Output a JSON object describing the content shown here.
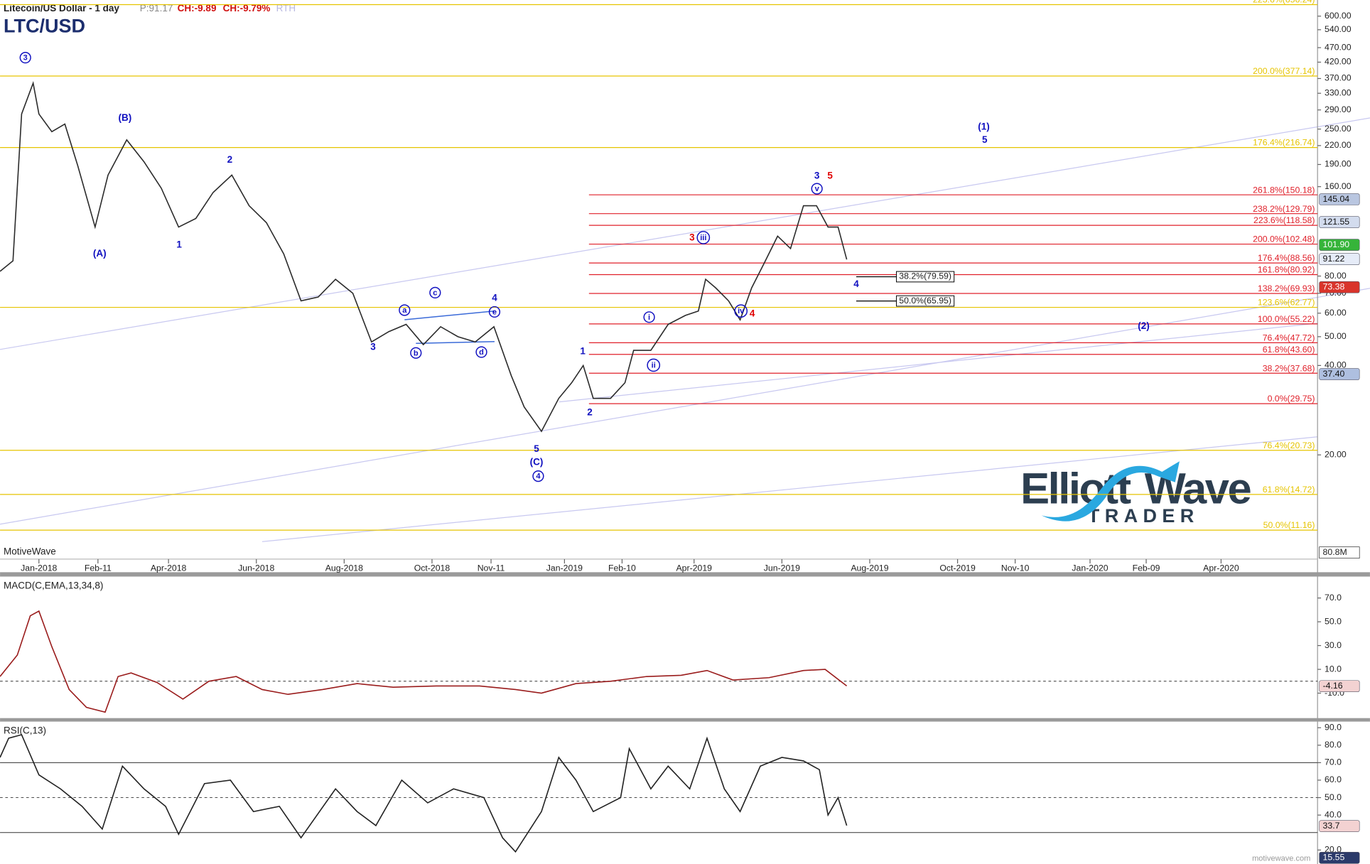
{
  "header": {
    "title": "Litecoin/US Dollar - 1 day",
    "price": "P:91.17",
    "change": "CH:-9.89",
    "change_pct": "CH:-9.79%",
    "session": "RTH",
    "symbol": "LTC/USD"
  },
  "watermark": {
    "left": "MotiveWave",
    "right": "motivewave.com"
  },
  "logo": {
    "word1": "Elliott",
    "word2": "Wave",
    "word3": "TRADER"
  },
  "chart_data": [
    {
      "type": "line",
      "log_scale": true,
      "color": "#2b2b2b",
      "x": [
        -27,
        -18,
        -12,
        -4,
        0,
        9,
        18,
        27,
        39,
        48,
        61,
        73,
        85,
        97,
        109,
        121,
        134,
        146,
        158,
        170,
        182,
        194,
        206,
        218,
        231,
        243,
        255,
        267,
        279,
        291,
        303,
        316,
        328,
        337,
        349,
        361,
        370,
        378,
        385,
        397,
        407,
        413,
        425,
        437,
        449,
        458,
        463,
        470,
        479,
        487,
        495,
        504,
        513,
        522,
        531,
        540,
        548,
        555,
        561
      ],
      "values": [
        83,
        90,
        281,
        357,
        281,
        245,
        260,
        188,
        117,
        175,
        230,
        194,
        158,
        117,
        125,
        153,
        175,
        138,
        121,
        95,
        66,
        68,
        78,
        70,
        48,
        52,
        55,
        47,
        54,
        50,
        48,
        54,
        37,
        29,
        24,
        31,
        35,
        40,
        31,
        31,
        35,
        45,
        45,
        55,
        59,
        61,
        78,
        73,
        66,
        57,
        73,
        89,
        109,
        99,
        138,
        138,
        117,
        117,
        91
      ],
      "xlim": [
        -27,
        888
      ],
      "xticks": [
        {
          "value": 0,
          "label": "Jan-2018"
        },
        {
          "value": 41,
          "label": "Feb-11"
        },
        {
          "value": 90,
          "label": "Apr-2018"
        },
        {
          "value": 151,
          "label": "Jun-2018"
        },
        {
          "value": 212,
          "label": "Aug-2018"
        },
        {
          "value": 273,
          "label": "Oct-2018"
        },
        {
          "value": 314,
          "label": "Nov-11"
        },
        {
          "value": 365,
          "label": "Jan-2019"
        },
        {
          "value": 405,
          "label": "Feb-10"
        },
        {
          "value": 455,
          "label": "Apr-2019"
        },
        {
          "value": 516,
          "label": "Jun-2019"
        },
        {
          "value": 577,
          "label": "Aug-2019"
        },
        {
          "value": 638,
          "label": "Oct-2019"
        },
        {
          "value": 678,
          "label": "Nov-10"
        },
        {
          "value": 730,
          "label": "Jan-2020"
        },
        {
          "value": 769,
          "label": "Feb-09"
        },
        {
          "value": 821,
          "label": "Apr-2020"
        }
      ],
      "ylim": [
        8,
        680
      ],
      "yticks": [
        {
          "value": 600,
          "label": "600.00"
        },
        {
          "value": 540,
          "label": "540.00"
        },
        {
          "value": 470,
          "label": "470.00"
        },
        {
          "value": 420,
          "label": "420.00"
        },
        {
          "value": 370,
          "label": "370.00"
        },
        {
          "value": 330,
          "label": "330.00"
        },
        {
          "value": 290,
          "label": "290.00"
        },
        {
          "value": 250,
          "label": "250.00"
        },
        {
          "value": 220,
          "label": "220.00"
        },
        {
          "value": 190,
          "label": "190.00"
        },
        {
          "value": 160,
          "label": "160.00"
        },
        {
          "value": 80,
          "label": "80.00"
        },
        {
          "value": 70,
          "label": "70.00"
        },
        {
          "value": 60,
          "label": "60.00"
        },
        {
          "value": 50,
          "label": "50.00"
        },
        {
          "value": 40,
          "label": "40.00"
        },
        {
          "value": 20,
          "label": "20.00"
        }
      ],
      "fib_sets": [
        {
          "color": "#e6c400",
          "levels": [
            {
              "value": 656.24,
              "label": "223.6%(656.24)"
            },
            {
              "value": 377.14,
              "label": "200.0%(377.14)"
            },
            {
              "value": 216.74,
              "label": "176.4%(216.74)"
            },
            {
              "value": 62.77,
              "label": "123.6%(62.77)"
            },
            {
              "value": 20.73,
              "label": "76.4%(20.73)"
            },
            {
              "value": 14.72,
              "label": "61.8%(14.72)"
            },
            {
              "value": 11.16,
              "label": "50.0%(11.16)"
            }
          ]
        },
        {
          "color": "#e0202a",
          "levels": [
            {
              "value": 150.18,
              "label": "261.8%(150.18)"
            },
            {
              "value": 129.79,
              "label": "238.2%(129.79)"
            },
            {
              "value": 118.58,
              "label": "223.6%(118.58)"
            },
            {
              "value": 102.48,
              "label": "200.0%(102.48)"
            },
            {
              "value": 88.56,
              "label": "176.4%(88.56)"
            },
            {
              "value": 80.92,
              "label": "161.8%(80.92)"
            },
            {
              "value": 69.93,
              "label": "138.2%(69.93)"
            },
            {
              "value": 55.22,
              "label": "100.0%(55.22)"
            },
            {
              "value": 47.72,
              "label": "76.4%(47.72)"
            },
            {
              "value": 43.6,
              "label": "61.8%(43.60)"
            },
            {
              "value": 37.68,
              "label": "38.2%(37.68)"
            },
            {
              "value": 29.75,
              "label": "0.0%(29.75)"
            }
          ]
        }
      ],
      "projections": [
        {
          "value": 79.59,
          "label": "38.2%(79.59)"
        },
        {
          "value": 65.95,
          "label": "50.0%(65.95)"
        }
      ],
      "price_badges": [
        {
          "value": 145.04,
          "label": "145.04",
          "color": "#b9c6e0"
        },
        {
          "value": 121.55,
          "label": "121.55",
          "color": "#d3dcee"
        },
        {
          "value": 101.9,
          "label": "101.90",
          "color": "#36b43a"
        },
        {
          "value": 91.22,
          "label": "91.22",
          "color": "#e6ecf8"
        },
        {
          "value": 73.38,
          "label": "73.38",
          "color": "#d9342b"
        },
        {
          "value": 37.4,
          "label": "37.40",
          "color": "#aebfe0"
        }
      ],
      "volume_badge": "80.8M",
      "wave_labels": [
        {
          "text": "3",
          "circled": true,
          "color": "#1010c0"
        },
        {
          "text": "(B)",
          "circled": false,
          "color": "#1010c0"
        },
        {
          "text": "(A)",
          "circled": false,
          "color": "#1010c0"
        },
        {
          "text": "2",
          "circled": false,
          "color": "#1010c0"
        },
        {
          "text": "1",
          "circled": false,
          "color": "#1010c0"
        },
        {
          "text": "a",
          "circled": true,
          "color": "#1010c0"
        },
        {
          "text": "c",
          "circled": true,
          "color": "#1010c0"
        },
        {
          "text": "4",
          "circled": false,
          "color": "#1010c0"
        },
        {
          "text": "e",
          "circled": true,
          "color": "#1010c0"
        },
        {
          "text": "b",
          "circled": true,
          "color": "#1010c0"
        },
        {
          "text": "d",
          "circled": true,
          "color": "#1010c0"
        },
        {
          "text": "3",
          "circled": false,
          "color": "#1010c0"
        },
        {
          "text": "5",
          "circled": false,
          "color": "#1010c0"
        },
        {
          "text": "(C)",
          "circled": false,
          "color": "#1010c0"
        },
        {
          "text": "4",
          "circled": true,
          "color": "#1010c0"
        },
        {
          "text": "1",
          "circled": false,
          "color": "#1010c0"
        },
        {
          "text": "2",
          "circled": false,
          "color": "#1010c0"
        },
        {
          "text": "i",
          "circled": true,
          "color": "#1010c0"
        },
        {
          "text": "ii",
          "circled": true,
          "color": "#1010c0"
        },
        {
          "text": "3",
          "circled": false,
          "color": "#e00000"
        },
        {
          "text": "iii",
          "circled": true,
          "color": "#1010c0"
        },
        {
          "text": "iv",
          "circled": true,
          "color": "#1010c0"
        },
        {
          "text": "4",
          "circled": false,
          "color": "#e00000"
        },
        {
          "text": "3",
          "circled": false,
          "color": "#1010c0"
        },
        {
          "text": "5",
          "circled": false,
          "color": "#e00000"
        },
        {
          "text": "v",
          "circled": true,
          "color": "#1010c0"
        },
        {
          "text": "4",
          "circled": false,
          "color": "#1010c0"
        },
        {
          "text": "(1)",
          "circled": false,
          "color": "#1010c0"
        },
        {
          "text": "5",
          "circled": false,
          "color": "#1010c0"
        },
        {
          "text": "(2)",
          "circled": false,
          "color": "#1010c0"
        }
      ]
    },
    {
      "type": "line",
      "title": "MACD(C,EMA,13,34,8)",
      "color": "#9a1c1c",
      "x": [
        -27,
        -15,
        -6,
        0,
        9,
        21,
        33,
        46,
        55,
        64,
        82,
        100,
        118,
        137,
        155,
        173,
        197,
        221,
        246,
        276,
        306,
        331,
        349,
        373,
        397,
        422,
        446,
        464,
        482,
        507,
        531,
        546,
        561
      ],
      "values": [
        4,
        22,
        55,
        59,
        29,
        -7,
        -22,
        -26,
        4,
        7,
        -1,
        -15,
        0,
        4,
        -7,
        -11,
        -7,
        -2,
        -5,
        -4,
        -4,
        -7,
        -10,
        -2,
        0,
        4,
        5,
        9,
        1,
        3,
        9,
        10,
        -4
      ],
      "xlim": [
        -27,
        888
      ],
      "ylim": [
        -31,
        88
      ],
      "yticks": [
        {
          "value": 70,
          "label": "70.0"
        },
        {
          "value": 50,
          "label": "50.0"
        },
        {
          "value": 30,
          "label": "30.0"
        },
        {
          "value": 10,
          "label": "10.0"
        },
        {
          "value": -10,
          "label": "-10.0"
        }
      ],
      "badges": [
        {
          "value": -4.16,
          "label": "-4.16",
          "color": "#f3d2d2"
        }
      ]
    },
    {
      "type": "line",
      "title": "RSI(C,13)",
      "color": "#222222",
      "x": [
        -27,
        -21,
        -12,
        0,
        15,
        30,
        44,
        58,
        73,
        88,
        97,
        115,
        133,
        149,
        167,
        182,
        206,
        221,
        234,
        252,
        270,
        288,
        309,
        322,
        331,
        349,
        361,
        373,
        385,
        404,
        410,
        425,
        437,
        452,
        464,
        476,
        487,
        501,
        516,
        531,
        542,
        548,
        555,
        561
      ],
      "values": [
        73,
        84,
        86,
        63,
        55,
        45,
        32,
        68,
        55,
        45,
        29,
        58,
        60,
        42,
        45,
        27,
        55,
        42,
        34,
        60,
        47,
        55,
        50,
        27,
        19,
        42,
        73,
        60,
        42,
        50,
        78,
        55,
        68,
        55,
        84,
        55,
        42,
        68,
        73,
        71,
        66,
        40,
        50,
        34
      ],
      "xlim": [
        -27,
        888
      ],
      "ylim": [
        12,
        93.5
      ],
      "yticks": [
        {
          "value": 90,
          "label": "90.0"
        },
        {
          "value": 80,
          "label": "80.0"
        },
        {
          "value": 70,
          "label": "70.0"
        },
        {
          "value": 60,
          "label": "60.0"
        },
        {
          "value": 50,
          "label": "50.0"
        },
        {
          "value": 40,
          "label": "40.0"
        },
        {
          "value": 20,
          "label": "20.0"
        }
      ],
      "levels": [
        70,
        50,
        30
      ],
      "badges": [
        {
          "value": 33.7,
          "label": "33.7",
          "color": "#f3d2d2"
        },
        {
          "value": 15.55,
          "label": "15.55",
          "color": "#2b3a6a"
        }
      ]
    }
  ]
}
